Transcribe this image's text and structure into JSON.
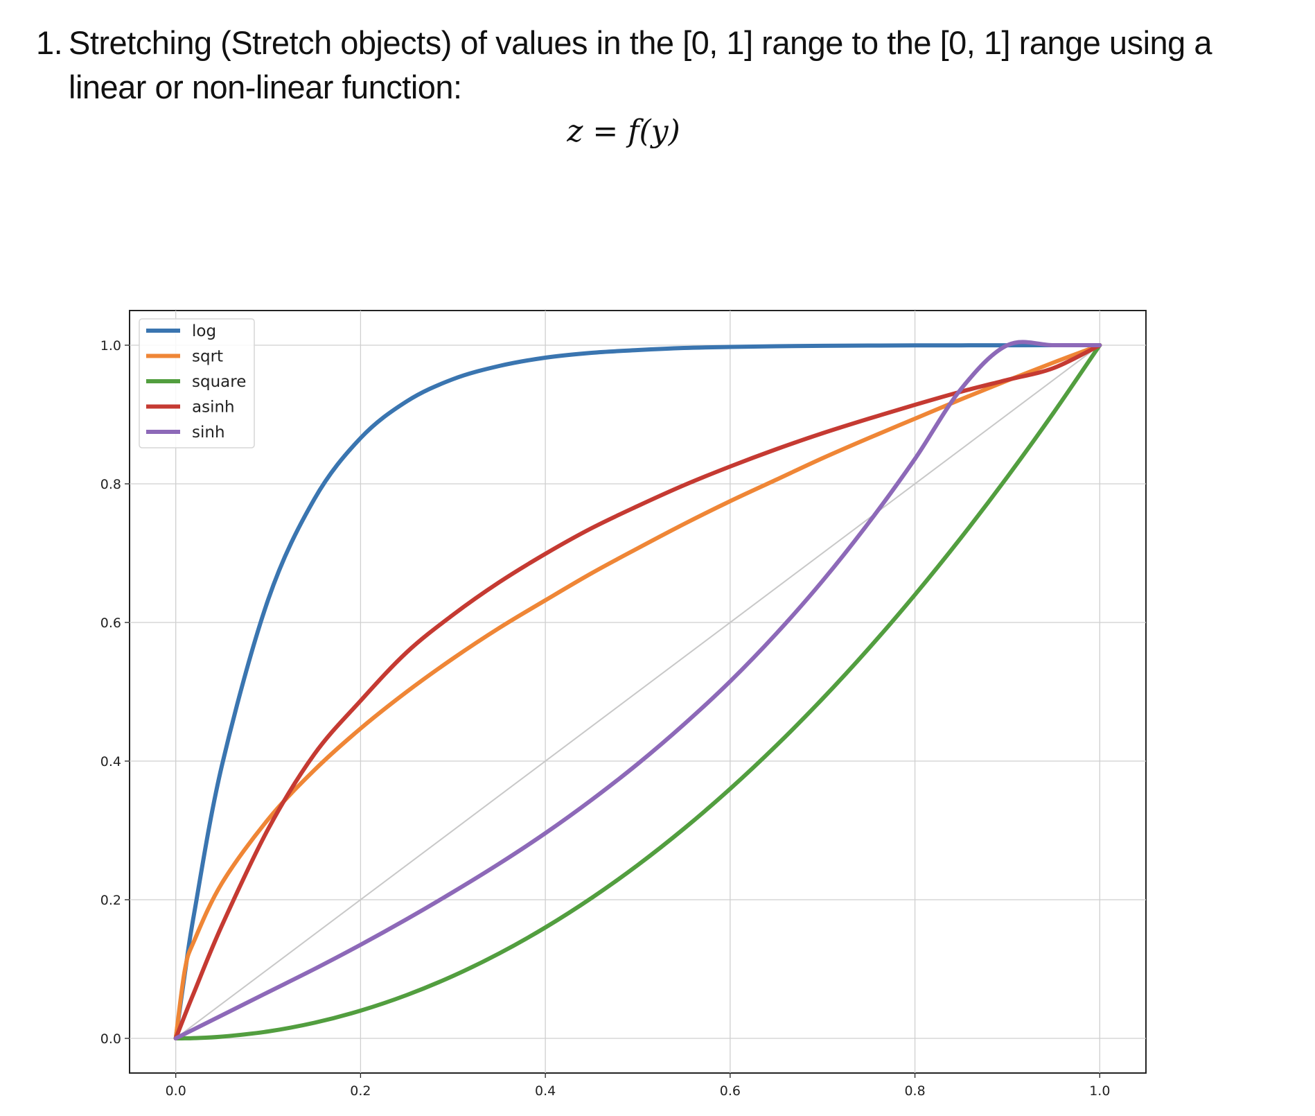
{
  "heading": {
    "number": "1.",
    "text": "Stretching (Stretch objects) of values in the [0, 1] range to the [0, 1] range using a linear or non-linear function:"
  },
  "formula": "z = f(y)",
  "chart_data": {
    "type": "line",
    "title": "",
    "xlabel": "",
    "ylabel": "",
    "xlim": [
      -0.05,
      1.05
    ],
    "ylim": [
      -0.05,
      1.05
    ],
    "xticks": [
      "0.0",
      "0.2",
      "0.4",
      "0.6",
      "0.8",
      "1.0"
    ],
    "yticks": [
      "0.0",
      "0.2",
      "0.4",
      "0.6",
      "0.8",
      "1.0"
    ],
    "grid": true,
    "legend_position": "upper left",
    "x": [
      0.0,
      0.01,
      0.02,
      0.05,
      0.1,
      0.15,
      0.2,
      0.25,
      0.3,
      0.35,
      0.4,
      0.45,
      0.5,
      0.55,
      0.6,
      0.65,
      0.7,
      0.75,
      0.8,
      0.85,
      0.9,
      0.95,
      1.0
    ],
    "reference_line": {
      "x": [
        0.0,
        1.0
      ],
      "values": [
        0.0,
        1.0
      ],
      "color": "#c8c8c8"
    },
    "series": [
      {
        "name": "log",
        "color": "#3a75b0",
        "values": [
          0.0,
          0.095,
          0.181,
          0.394,
          0.633,
          0.778,
          0.866,
          0.919,
          0.951,
          0.97,
          0.982,
          0.989,
          0.993,
          0.996,
          0.9975,
          0.9985,
          0.9991,
          0.9995,
          0.9997,
          0.9998,
          0.9999,
          1.0,
          1.0
        ]
      },
      {
        "name": "sqrt",
        "color": "#ef8636",
        "values": [
          0.0,
          0.1,
          0.141,
          0.224,
          0.316,
          0.387,
          0.447,
          0.5,
          0.548,
          0.592,
          0.632,
          0.671,
          0.707,
          0.742,
          0.775,
          0.806,
          0.837,
          0.866,
          0.894,
          0.922,
          0.949,
          0.975,
          1.0
        ]
      },
      {
        "name": "square",
        "color": "#529e3f",
        "values": [
          0.0,
          0.0001,
          0.0004,
          0.0025,
          0.01,
          0.0225,
          0.04,
          0.0625,
          0.09,
          0.1225,
          0.16,
          0.2025,
          0.25,
          0.3025,
          0.36,
          0.4225,
          0.49,
          0.5625,
          0.64,
          0.7225,
          0.81,
          0.9025,
          1.0
        ]
      },
      {
        "name": "asinh",
        "color": "#c53a32",
        "values": [
          0.0,
          0.034,
          0.067,
          0.163,
          0.302,
          0.41,
          0.487,
          0.557,
          0.611,
          0.658,
          0.699,
          0.736,
          0.768,
          0.798,
          0.825,
          0.85,
          0.873,
          0.894,
          0.914,
          0.933,
          0.95,
          0.967,
          1.0
        ]
      },
      {
        "name": "sinh",
        "color": "#8d69b8",
        "values": [
          0.0,
          0.0067,
          0.0133,
          0.0333,
          0.0667,
          0.1,
          0.135,
          0.172,
          0.211,
          0.252,
          0.296,
          0.344,
          0.396,
          0.453,
          0.515,
          0.584,
          0.66,
          0.744,
          0.836,
          0.937,
          1.0,
          1.0,
          1.0
        ]
      }
    ]
  }
}
